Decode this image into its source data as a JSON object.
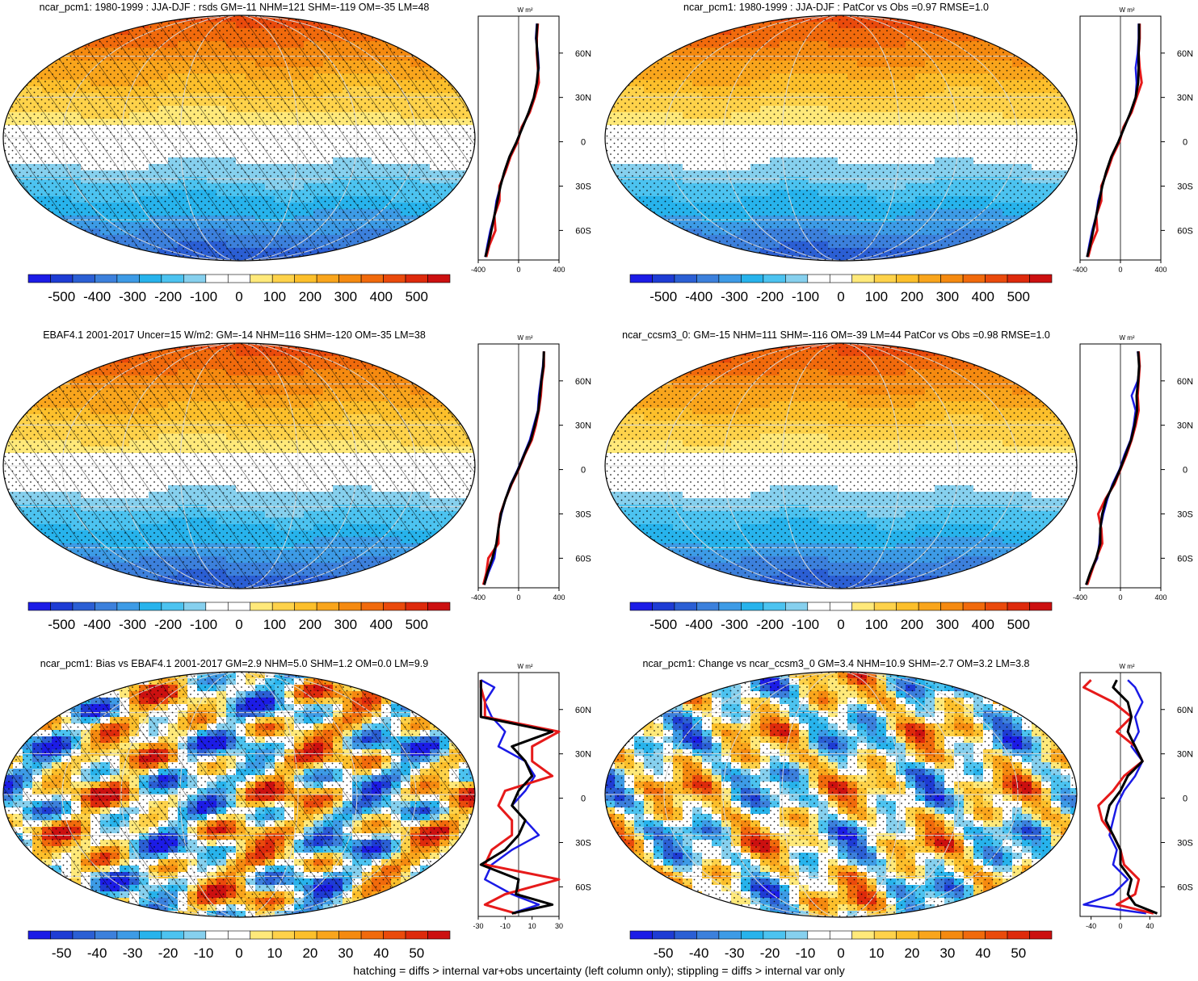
{
  "footer": "hatching = diffs > internal var+obs uncertainty (left column only); stippling = diffs > internal var only",
  "colors": {
    "colorbar": [
      "#1c1ce6",
      "#1e3cd4",
      "#2b5fd4",
      "#3c80dc",
      "#3d9be6",
      "#27b3ec",
      "#4cc3f0",
      "#86d0ee",
      "#ffffff",
      "#ffffff",
      "#ffe97a",
      "#fed24a",
      "#fcbf2b",
      "#f9a51c",
      "#f58a10",
      "#f16a0c",
      "#ea4a0c",
      "#de2a0c",
      "#cc1010"
    ],
    "series_blue": "#1a1ae6",
    "series_red": "#e61a1a",
    "series_black": "#000000",
    "graticule": "#d8d8d8"
  },
  "panels": [
    {
      "title": "ncar_pcm1: 1980-1999 : JJA-DJF : rsds GM=-11 NHM=121 SHM=-119 OM=-35 LM=48",
      "map_pattern": "seasonal",
      "colorbar_labels": [
        "-500",
        "-400",
        "-300",
        "-200",
        "-100",
        "0",
        "100",
        "200",
        "300",
        "400",
        "500"
      ],
      "hatched": true,
      "stippled": true,
      "profile": {
        "unit": "W m²",
        "x_ticks": [
          "-400",
          "0",
          "400"
        ],
        "x_range": [
          -400,
          400
        ],
        "y_ticks": [
          "60N",
          "30N",
          "0",
          "30S",
          "60S"
        ],
        "lat_range": [
          -80,
          85
        ],
        "series": {
          "blue": {
            "lat": [
              -78,
              -70,
              -60,
              -50,
              -40,
              -30,
              -20,
              -10,
              0,
              10,
              20,
              30,
              40,
              50,
              60,
              70,
              80
            ],
            "values": [
              -330,
              -310,
              -280,
              -240,
              -220,
              -180,
              -140,
              -90,
              -20,
              40,
              100,
              150,
              180,
              200,
              190,
              170,
              180
            ]
          },
          "red": {
            "lat": [
              -78,
              -70,
              -60,
              -50,
              -40,
              -30,
              -20,
              -10,
              0,
              10,
              20,
              30,
              40,
              50,
              60,
              70,
              80
            ],
            "values": [
              -320,
              -290,
              -230,
              -240,
              -190,
              -190,
              -130,
              -80,
              -10,
              30,
              110,
              160,
              200,
              190,
              180,
              180,
              190
            ]
          },
          "black": {
            "lat": [
              -78,
              -70,
              -60,
              -50,
              -40,
              -30,
              -20,
              -10,
              0,
              10,
              20,
              30,
              40,
              50,
              60,
              70,
              80
            ],
            "values": [
              -330,
              -300,
              -270,
              -240,
              -210,
              -180,
              -140,
              -90,
              -20,
              40,
              100,
              150,
              180,
              195,
              185,
              175,
              185
            ]
          }
        }
      }
    },
    {
      "title": "ncar_pcm1: 1980-1999 : JJA-DJF : PatCor vs Obs =0.97 RMSE=1.0",
      "map_pattern": "seasonal",
      "colorbar_labels": [
        "-500",
        "-400",
        "-300",
        "-200",
        "-100",
        "0",
        "100",
        "200",
        "300",
        "400",
        "500"
      ],
      "hatched": false,
      "stippled": true,
      "profile": {
        "unit": "W m²",
        "x_ticks": [
          "-400",
          "0",
          "400"
        ],
        "x_range": [
          -400,
          400
        ],
        "y_ticks": [
          "60N",
          "30N",
          "0",
          "30S",
          "60S"
        ],
        "lat_range": [
          -80,
          85
        ],
        "series": {
          "blue": {
            "lat": [
              -78,
              -70,
              -60,
              -50,
              -40,
              -30,
              -20,
              -10,
              0,
              10,
              20,
              30,
              40,
              50,
              60,
              70,
              80
            ],
            "values": [
              -330,
              -310,
              -280,
              -240,
              -220,
              -180,
              -140,
              -90,
              -20,
              40,
              100,
              150,
              160,
              150,
              170,
              180,
              180
            ]
          },
          "red": {
            "lat": [
              -78,
              -70,
              -60,
              -50,
              -40,
              -30,
              -20,
              -10,
              0,
              10,
              20,
              30,
              40,
              50,
              60,
              70,
              80
            ],
            "values": [
              -320,
              -290,
              -230,
              -240,
              -190,
              -190,
              -130,
              -80,
              -10,
              30,
              110,
              160,
              210,
              190,
              180,
              190,
              190
            ]
          },
          "black": {
            "lat": [
              -78,
              -70,
              -60,
              -50,
              -40,
              -30,
              -20,
              -10,
              0,
              10,
              20,
              30,
              40,
              50,
              60,
              70,
              80
            ],
            "values": [
              -330,
              -300,
              -270,
              -240,
              -210,
              -180,
              -140,
              -90,
              -20,
              40,
              100,
              150,
              175,
              180,
              180,
              185,
              185
            ]
          }
        }
      }
    },
    {
      "title": "EBAF4.1 2001-2017 Uncer=15 W/m2: GM=-14 NHM=116 SHM=-120 OM=-35 LM=38",
      "map_pattern": "seasonal",
      "colorbar_labels": [
        "-500",
        "-400",
        "-300",
        "-200",
        "-100",
        "0",
        "100",
        "200",
        "300",
        "400",
        "500"
      ],
      "hatched": true,
      "stippled": true,
      "profile": {
        "unit": "W m²",
        "x_ticks": [
          "-400",
          "0",
          "400"
        ],
        "x_range": [
          -400,
          400
        ],
        "y_ticks": [
          "60N",
          "30N",
          "0",
          "30S",
          "60S"
        ],
        "lat_range": [
          -80,
          85
        ],
        "series": {
          "blue": {
            "lat": [
              -78,
              -70,
              -60,
              -50,
              -40,
              -30,
              -20,
              -10,
              0,
              10,
              20,
              30,
              40,
              50,
              60,
              70,
              80
            ],
            "values": [
              -340,
              -300,
              -240,
              -220,
              -200,
              -170,
              -130,
              -80,
              -10,
              50,
              110,
              150,
              190,
              200,
              220,
              240,
              250
            ]
          },
          "red": {
            "lat": [
              -78,
              -70,
              -60,
              -50,
              -40,
              -30,
              -20,
              -10,
              0,
              10,
              20,
              30,
              40,
              50,
              60,
              70,
              80
            ],
            "values": [
              -350,
              -320,
              -300,
              -200,
              -200,
              -180,
              -130,
              -70,
              0,
              60,
              130,
              170,
              200,
              220,
              230,
              250,
              250
            ]
          },
          "black": {
            "lat": [
              -78,
              -70,
              -60,
              -50,
              -40,
              -30,
              -20,
              -10,
              0,
              10,
              20,
              30,
              40,
              50,
              60,
              70,
              80
            ],
            "values": [
              -340,
              -310,
              -260,
              -220,
              -200,
              -175,
              -130,
              -75,
              -5,
              55,
              120,
              160,
              195,
              210,
              225,
              245,
              250
            ]
          }
        }
      }
    },
    {
      "title": "ncar_ccsm3_0: GM=-15 NHM=111 SHM=-116 OM=-39 LM=44 PatCor vs Obs =0.98 RMSE=1.0",
      "map_pattern": "seasonal",
      "colorbar_labels": [
        "-500",
        "-400",
        "-300",
        "-200",
        "-100",
        "0",
        "100",
        "200",
        "300",
        "400",
        "500"
      ],
      "hatched": false,
      "stippled": true,
      "profile": {
        "unit": "W m²",
        "x_ticks": [
          "-400",
          "0",
          "400"
        ],
        "x_range": [
          -400,
          400
        ],
        "y_ticks": [
          "60N",
          "30N",
          "0",
          "30S",
          "60S"
        ],
        "lat_range": [
          -80,
          85
        ],
        "series": {
          "blue": {
            "lat": [
              -78,
              -70,
              -60,
              -50,
              -40,
              -30,
              -20,
              -10,
              0,
              10,
              20,
              30,
              40,
              50,
              60,
              70,
              80
            ],
            "values": [
              -340,
              -300,
              -230,
              -210,
              -200,
              -170,
              -130,
              -80,
              -10,
              40,
              100,
              130,
              150,
              110,
              170,
              190,
              170
            ]
          },
          "red": {
            "lat": [
              -78,
              -70,
              -60,
              -50,
              -40,
              -30,
              -20,
              -10,
              0,
              10,
              20,
              30,
              40,
              50,
              60,
              70,
              80
            ],
            "values": [
              -330,
              -290,
              -240,
              -180,
              -190,
              -220,
              -150,
              -60,
              0,
              60,
              110,
              150,
              180,
              170,
              180,
              190,
              180
            ]
          },
          "black": {
            "lat": [
              -78,
              -70,
              -60,
              -50,
              -40,
              -30,
              -20,
              -10,
              0,
              10,
              20,
              30,
              40,
              50,
              60,
              70,
              80
            ],
            "values": [
              -340,
              -300,
              -240,
              -200,
              -200,
              -180,
              -140,
              -70,
              -5,
              50,
              105,
              140,
              165,
              160,
              175,
              185,
              175
            ]
          }
        }
      }
    },
    {
      "title": "ncar_pcm1: Bias vs EBAF4.1 2001-2017 GM=2.9 NHM=5.0 SHM=1.2 OM=0.0 LM=9.9",
      "map_pattern": "bias",
      "colorbar_labels": [
        "-50",
        "-40",
        "-30",
        "-20",
        "-10",
        "0",
        "10",
        "20",
        "30",
        "40",
        "50"
      ],
      "hatched": true,
      "stippled": true,
      "profile": {
        "unit": "W m²",
        "x_ticks": [
          "-30",
          "-10",
          "10",
          "30"
        ],
        "x_range": [
          -30,
          30
        ],
        "y_ticks": [
          "60N",
          "30N",
          "0",
          "30S",
          "60S"
        ],
        "lat_range": [
          -80,
          85
        ],
        "series": {
          "blue": {
            "lat": [
              -78,
              -72,
              -65,
              -55,
              -45,
              -35,
              -25,
              -15,
              -5,
              5,
              15,
              25,
              35,
              45,
              55,
              65,
              75,
              80
            ],
            "values": [
              -5,
              15,
              -5,
              -25,
              -20,
              -5,
              15,
              5,
              -5,
              5,
              12,
              5,
              -15,
              -10,
              -20,
              -25,
              -18,
              -28
            ]
          },
          "red": {
            "lat": [
              -78,
              -72,
              -65,
              -55,
              -45,
              -35,
              -25,
              -15,
              -5,
              5,
              15,
              25,
              35,
              45,
              55,
              65,
              75,
              80
            ],
            "values": [
              -2,
              -25,
              -10,
              30,
              -25,
              -20,
              -5,
              -5,
              -15,
              -10,
              25,
              10,
              10,
              30,
              -25,
              -25,
              -28,
              -28
            ]
          },
          "black": {
            "lat": [
              -78,
              -72,
              -65,
              -55,
              -45,
              -35,
              -25,
              -15,
              -5,
              5,
              15,
              25,
              35,
              45,
              55,
              65,
              75,
              80
            ],
            "values": [
              -5,
              25,
              -2,
              0,
              -28,
              -10,
              0,
              5,
              -5,
              0,
              10,
              5,
              -5,
              25,
              -28,
              -28,
              -28,
              -28
            ]
          }
        }
      }
    },
    {
      "title": "ncar_pcm1: Change vs ncar_ccsm3_0 GM=3.4 NHM=10.9 SHM=-2.7 OM=3.2 LM=3.8",
      "map_pattern": "change",
      "colorbar_labels": [
        "-50",
        "-40",
        "-30",
        "-20",
        "-10",
        "0",
        "10",
        "20",
        "30",
        "40",
        "50"
      ],
      "hatched": false,
      "stippled": true,
      "profile": {
        "unit": "W m²",
        "x_ticks": [
          "-40",
          "0",
          "40"
        ],
        "x_range": [
          -55,
          55
        ],
        "y_ticks": [
          "60N",
          "30N",
          "0",
          "30S",
          "60S"
        ],
        "lat_range": [
          -80,
          85
        ],
        "series": {
          "blue": {
            "lat": [
              -78,
              -72,
              -65,
              -55,
              -45,
              -35,
              -25,
              -15,
              -5,
              5,
              15,
              25,
              35,
              45,
              55,
              65,
              75,
              80
            ],
            "values": [
              35,
              -50,
              -10,
              10,
              -10,
              -5,
              -15,
              -10,
              -5,
              5,
              20,
              30,
              15,
              25,
              20,
              30,
              20,
              10
            ]
          },
          "red": {
            "lat": [
              -78,
              -72,
              -65,
              -55,
              -45,
              -35,
              -25,
              -15,
              -5,
              5,
              15,
              25,
              35,
              45,
              55,
              65,
              75,
              80
            ],
            "values": [
              45,
              -5,
              20,
              25,
              5,
              0,
              -10,
              -25,
              -30,
              -10,
              5,
              30,
              20,
              -5,
              15,
              -10,
              -50,
              -40
            ]
          },
          "black": {
            "lat": [
              -78,
              -72,
              -65,
              -55,
              -45,
              -35,
              -25,
              -15,
              -5,
              5,
              15,
              25,
              35,
              45,
              55,
              65,
              75,
              80
            ],
            "values": [
              50,
              20,
              10,
              15,
              0,
              0,
              -10,
              -20,
              -15,
              0,
              10,
              30,
              20,
              10,
              15,
              10,
              -10,
              -5
            ]
          }
        }
      }
    }
  ]
}
